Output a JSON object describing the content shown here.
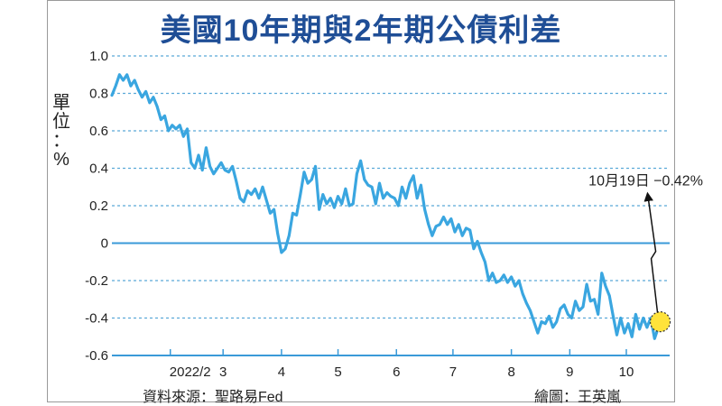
{
  "chart_data": {
    "type": "line",
    "title": "美國10年期與2年期公債利差",
    "ylabel": "單位：%",
    "ylim": [
      -0.6,
      1.0
    ],
    "yticks": [
      "1.0",
      "0.8",
      "0.6",
      "0.4",
      "0.2",
      "0",
      "-0.2",
      "-0.4",
      "-0.6"
    ],
    "ytick_values": [
      1.0,
      0.8,
      0.6,
      0.4,
      0.2,
      0,
      -0.2,
      -0.4,
      -0.6
    ],
    "xlim": [
      "2022-01-01",
      "2022-10-24"
    ],
    "xticks": [
      {
        "label": "2022/2",
        "date": "2022-02-01"
      },
      {
        "label": "3",
        "date": "2022-03-01"
      },
      {
        "label": "4",
        "date": "2022-04-01"
      },
      {
        "label": "5",
        "date": "2022-05-01"
      },
      {
        "label": "6",
        "date": "2022-06-01"
      },
      {
        "label": "7",
        "date": "2022-07-01"
      },
      {
        "label": "8",
        "date": "2022-08-01"
      },
      {
        "label": "9",
        "date": "2022-09-01"
      },
      {
        "label": "10",
        "date": "2022-10-01"
      }
    ],
    "grid": "horizontal dashed",
    "colors": {
      "line": "#3aa6e0",
      "grid": "#5aa9d8",
      "zero_line": "#3a9ad8",
      "title": "#1f4e96",
      "highlight": "#ffe33a"
    },
    "series": [
      {
        "x": [
          "2022-01-01",
          "2022-01-03",
          "2022-01-05",
          "2022-01-07",
          "2022-01-09",
          "2022-01-11",
          "2022-01-13",
          "2022-01-15",
          "2022-01-17",
          "2022-01-19",
          "2022-01-21",
          "2022-01-23",
          "2022-01-25",
          "2022-01-27",
          "2022-01-29",
          "2022-01-31",
          "2022-02-02",
          "2022-02-04",
          "2022-02-06",
          "2022-02-08",
          "2022-02-10",
          "2022-02-12",
          "2022-02-14",
          "2022-02-16",
          "2022-02-18",
          "2022-02-20",
          "2022-02-22",
          "2022-02-24",
          "2022-02-26",
          "2022-02-28",
          "2022-03-02",
          "2022-03-04",
          "2022-03-06",
          "2022-03-08",
          "2022-03-10",
          "2022-03-12",
          "2022-03-14",
          "2022-03-16",
          "2022-03-18",
          "2022-03-20",
          "2022-03-22",
          "2022-03-24",
          "2022-03-26",
          "2022-03-28",
          "2022-03-30",
          "2022-04-01",
          "2022-04-03",
          "2022-04-05",
          "2022-04-07",
          "2022-04-09",
          "2022-04-11",
          "2022-04-13",
          "2022-04-15",
          "2022-04-17",
          "2022-04-19",
          "2022-04-21",
          "2022-04-23",
          "2022-04-25",
          "2022-04-27",
          "2022-04-29",
          "2022-05-01",
          "2022-05-03",
          "2022-05-05",
          "2022-05-07",
          "2022-05-09",
          "2022-05-11",
          "2022-05-13",
          "2022-05-15",
          "2022-05-17",
          "2022-05-19",
          "2022-05-21",
          "2022-05-23",
          "2022-05-25",
          "2022-05-27",
          "2022-05-29",
          "2022-05-31",
          "2022-06-02",
          "2022-06-04",
          "2022-06-06",
          "2022-06-08",
          "2022-06-10",
          "2022-06-12",
          "2022-06-14",
          "2022-06-16",
          "2022-06-18",
          "2022-06-20",
          "2022-06-22",
          "2022-06-24",
          "2022-06-26",
          "2022-06-28",
          "2022-06-30",
          "2022-07-02",
          "2022-07-04",
          "2022-07-06",
          "2022-07-08",
          "2022-07-10",
          "2022-07-12",
          "2022-07-14",
          "2022-07-16",
          "2022-07-18",
          "2022-07-20",
          "2022-07-22",
          "2022-07-24",
          "2022-07-26",
          "2022-07-28",
          "2022-07-30",
          "2022-08-01",
          "2022-08-03",
          "2022-08-05",
          "2022-08-07",
          "2022-08-09",
          "2022-08-11",
          "2022-08-13",
          "2022-08-15",
          "2022-08-17",
          "2022-08-19",
          "2022-08-21",
          "2022-08-23",
          "2022-08-25",
          "2022-08-27",
          "2022-08-29",
          "2022-08-31",
          "2022-09-02",
          "2022-09-04",
          "2022-09-06",
          "2022-09-08",
          "2022-09-10",
          "2022-09-12",
          "2022-09-14",
          "2022-09-16",
          "2022-09-18",
          "2022-09-20",
          "2022-09-22",
          "2022-09-24",
          "2022-09-26",
          "2022-09-28",
          "2022-09-30",
          "2022-10-02",
          "2022-10-04",
          "2022-10-06",
          "2022-10-08",
          "2022-10-10",
          "2022-10-12",
          "2022-10-14",
          "2022-10-16",
          "2022-10-19"
        ],
        "values": [
          0.79,
          0.84,
          0.9,
          0.87,
          0.9,
          0.84,
          0.87,
          0.82,
          0.78,
          0.81,
          0.75,
          0.78,
          0.73,
          0.66,
          0.68,
          0.6,
          0.63,
          0.61,
          0.63,
          0.57,
          0.61,
          0.43,
          0.4,
          0.47,
          0.39,
          0.51,
          0.41,
          0.37,
          0.4,
          0.43,
          0.39,
          0.38,
          0.41,
          0.33,
          0.24,
          0.22,
          0.28,
          0.26,
          0.29,
          0.24,
          0.3,
          0.23,
          0.16,
          0.18,
          0.05,
          -0.05,
          -0.03,
          0.04,
          0.16,
          0.15,
          0.26,
          0.38,
          0.32,
          0.34,
          0.41,
          0.18,
          0.26,
          0.21,
          0.24,
          0.19,
          0.25,
          0.21,
          0.29,
          0.2,
          0.21,
          0.37,
          0.44,
          0.34,
          0.31,
          0.3,
          0.21,
          0.32,
          0.24,
          0.27,
          0.25,
          0.24,
          0.2,
          0.3,
          0.24,
          0.32,
          0.36,
          0.24,
          0.31,
          0.18,
          0.1,
          0.04,
          0.09,
          0.1,
          0.14,
          0.1,
          0.13,
          0.06,
          0.1,
          0.04,
          0.08,
          0.07,
          -0.03,
          0.01,
          -0.05,
          -0.1,
          -0.2,
          -0.16,
          -0.21,
          -0.2,
          -0.17,
          -0.21,
          -0.18,
          -0.23,
          -0.2,
          -0.27,
          -0.32,
          -0.36,
          -0.42,
          -0.48,
          -0.42,
          -0.43,
          -0.39,
          -0.45,
          -0.42,
          -0.35,
          -0.33,
          -0.38,
          -0.4,
          -0.31,
          -0.36,
          -0.34,
          -0.22,
          -0.31,
          -0.3,
          -0.38,
          -0.16,
          -0.23,
          -0.28,
          -0.39,
          -0.49,
          -0.4,
          -0.48,
          -0.43,
          -0.5,
          -0.38,
          -0.46,
          -0.4,
          -0.45,
          -0.4,
          -0.51,
          -0.42
        ]
      }
    ],
    "annotation": {
      "text": "10月19日 −0.42%",
      "date": "2022-10-19",
      "value": -0.42
    }
  },
  "footer": {
    "source": "資料來源：聖路易Fed",
    "artist": "繪圖：王英嵐"
  },
  "unit_chars": [
    "單",
    "位",
    "：",
    "%"
  ]
}
